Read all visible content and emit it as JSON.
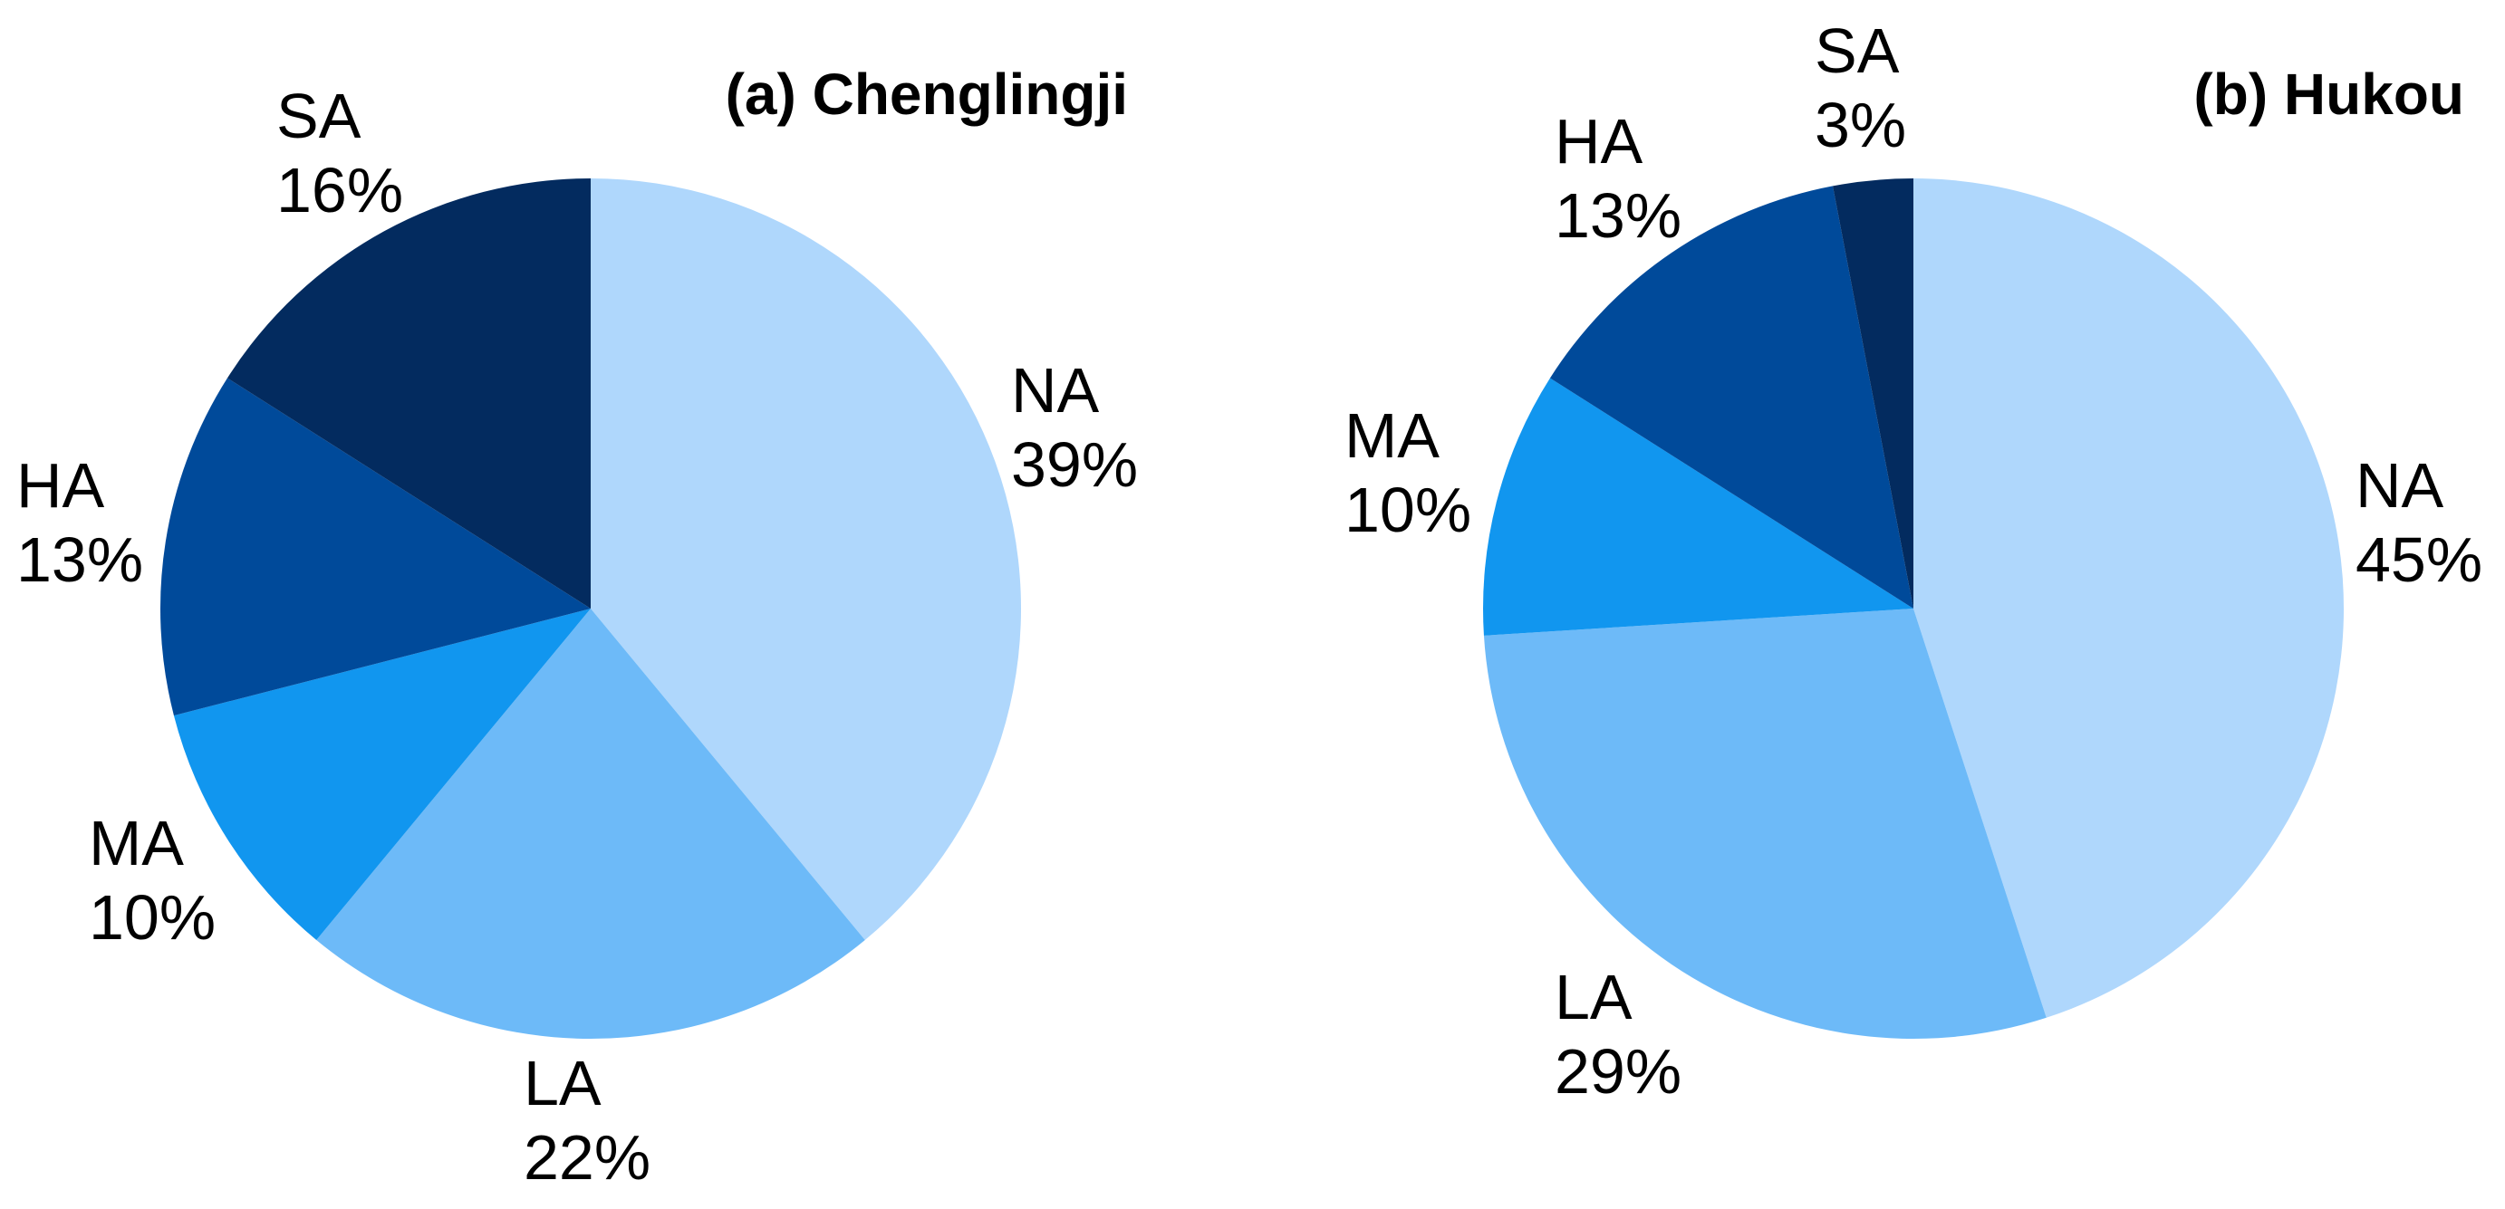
{
  "chart_data": [
    {
      "type": "pie",
      "title": "(a) Chenglingji",
      "slices": [
        {
          "label": "NA",
          "value": 39,
          "value_label": "39%",
          "color": "#AFD7FC"
        },
        {
          "label": "LA",
          "value": 22,
          "value_label": "22%",
          "color": "#6DBAF8"
        },
        {
          "label": "MA",
          "value": 10,
          "value_label": "10%",
          "color": "#1196EF"
        },
        {
          "label": "HA",
          "value": 13,
          "value_label": "13%",
          "color": "#004A9A"
        },
        {
          "label": "SA",
          "value": 16,
          "value_label": "16%",
          "color": "#032B5F"
        }
      ],
      "start_angle_deg": 0,
      "direction": "clockwise"
    },
    {
      "type": "pie",
      "title": "(b) Hukou",
      "slices": [
        {
          "label": "NA",
          "value": 45,
          "value_label": "45%",
          "color": "#AFD7FC"
        },
        {
          "label": "LA",
          "value": 29,
          "value_label": "29%",
          "color": "#6DBAF8"
        },
        {
          "label": "MA",
          "value": 10,
          "value_label": "10%",
          "color": "#1196EF"
        },
        {
          "label": "HA",
          "value": 13,
          "value_label": "13%",
          "color": "#004A9A"
        },
        {
          "label": "SA",
          "value": 3,
          "value_label": "3%",
          "color": "#032B5F"
        }
      ],
      "start_angle_deg": 0,
      "direction": "clockwise"
    }
  ]
}
